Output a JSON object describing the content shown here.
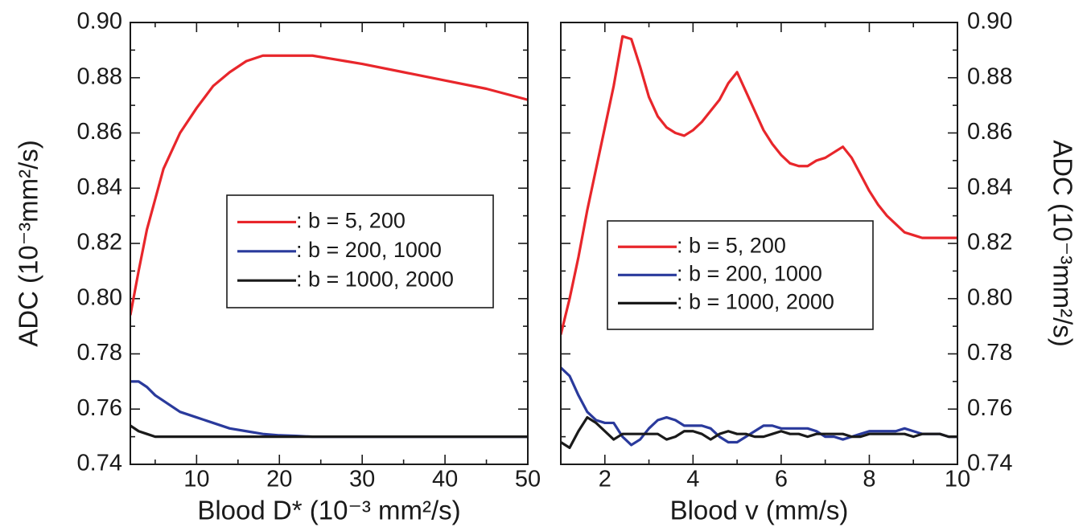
{
  "chart_data": [
    {
      "type": "line",
      "x_label": "Blood D* (10⁻³ mm²/s)",
      "y_label": "ADC (10⁻³mm²/s)",
      "y_axis_side": "left",
      "legend": "center",
      "xlim": [
        2,
        50
      ],
      "xticks": [
        10,
        20,
        30,
        40,
        50
      ],
      "xminorticks": [
        5,
        15,
        25,
        35,
        45
      ],
      "ylim": [
        0.74,
        0.9
      ],
      "yticks": [
        0.74,
        0.76,
        0.78,
        {
          "value": 0.8,
          "label": "0.80"
        },
        0.82,
        0.84,
        0.86,
        0.88,
        {
          "value": 0.9,
          "label": "0.90"
        }
      ],
      "yminorticks": [
        0.75,
        0.77,
        0.79,
        0.81,
        0.83,
        0.85,
        0.87,
        0.89
      ],
      "x": [
        2,
        3,
        4,
        5,
        6,
        8,
        10,
        12,
        14,
        16,
        18,
        20,
        22,
        24,
        26,
        28,
        30,
        35,
        40,
        45,
        50
      ],
      "series": [
        {
          "name": ": b = 5, 200",
          "color": "#e8262b",
          "values": [
            0.794,
            0.81,
            0.825,
            0.836,
            0.847,
            0.86,
            0.869,
            0.877,
            0.882,
            0.886,
            0.888,
            0.888,
            0.888,
            0.888,
            0.887,
            0.886,
            0.885,
            0.882,
            0.879,
            0.876,
            0.872
          ]
        },
        {
          "name": ": b = 200, 1000",
          "color": "#2a3a9c",
          "values": [
            0.77,
            0.77,
            0.768,
            0.765,
            0.763,
            0.759,
            0.757,
            0.755,
            0.753,
            0.752,
            0.751,
            0.7505,
            0.7503,
            0.75,
            0.75,
            0.75,
            0.75,
            0.75,
            0.75,
            0.75,
            0.75
          ]
        },
        {
          "name": ": b = 1000, 2000",
          "color": "#1a1a1a",
          "values": [
            0.754,
            0.752,
            0.751,
            0.75,
            0.75,
            0.75,
            0.75,
            0.75,
            0.75,
            0.75,
            0.75,
            0.75,
            0.75,
            0.75,
            0.75,
            0.75,
            0.75,
            0.75,
            0.75,
            0.75,
            0.75
          ]
        }
      ]
    },
    {
      "type": "line",
      "x_label": "Blood v (mm/s)",
      "y_label": "ADC (10⁻³mm²/s)",
      "y_axis_side": "right",
      "legend": "center-left",
      "xlim": [
        1,
        10
      ],
      "xticks": [
        2,
        4,
        6,
        8,
        10
      ],
      "xminorticks": [
        1,
        3,
        5,
        7,
        9
      ],
      "ylim": [
        0.74,
        0.9
      ],
      "yticks": [
        0.74,
        0.76,
        0.78,
        {
          "value": 0.8,
          "label": "0.80"
        },
        0.82,
        0.84,
        0.86,
        0.88,
        {
          "value": 0.9,
          "label": "0.90"
        }
      ],
      "yminorticks": [
        0.75,
        0.77,
        0.79,
        0.81,
        0.83,
        0.85,
        0.87,
        0.89
      ],
      "x": [
        1.0,
        1.2,
        1.4,
        1.6,
        1.8,
        2.0,
        2.2,
        2.4,
        2.6,
        2.8,
        3.0,
        3.2,
        3.4,
        3.6,
        3.8,
        4.0,
        4.2,
        4.4,
        4.6,
        4.8,
        5.0,
        5.2,
        5.4,
        5.6,
        5.8,
        6.0,
        6.2,
        6.4,
        6.6,
        6.8,
        7.0,
        7.2,
        7.4,
        7.6,
        7.8,
        8.0,
        8.2,
        8.4,
        8.6,
        8.8,
        9.0,
        9.2,
        9.4,
        9.6,
        9.8,
        10.0
      ],
      "series": [
        {
          "name": ": b = 5, 200",
          "color": "#e8262b",
          "values": [
            0.787,
            0.8,
            0.815,
            0.832,
            0.847,
            0.862,
            0.877,
            0.895,
            0.894,
            0.884,
            0.873,
            0.866,
            0.862,
            0.86,
            0.859,
            0.861,
            0.864,
            0.868,
            0.872,
            0.878,
            0.882,
            0.875,
            0.868,
            0.861,
            0.856,
            0.852,
            0.849,
            0.848,
            0.848,
            0.85,
            0.851,
            0.853,
            0.855,
            0.851,
            0.845,
            0.839,
            0.834,
            0.83,
            0.827,
            0.824,
            0.823,
            0.822,
            0.822,
            0.822,
            0.822,
            0.822
          ]
        },
        {
          "name": ": b = 200, 1000",
          "color": "#2a3a9c",
          "values": [
            0.775,
            0.772,
            0.765,
            0.759,
            0.756,
            0.755,
            0.755,
            0.75,
            0.747,
            0.749,
            0.753,
            0.756,
            0.757,
            0.756,
            0.754,
            0.754,
            0.754,
            0.753,
            0.75,
            0.748,
            0.748,
            0.75,
            0.752,
            0.754,
            0.754,
            0.753,
            0.753,
            0.753,
            0.753,
            0.752,
            0.75,
            0.75,
            0.749,
            0.75,
            0.751,
            0.752,
            0.752,
            0.752,
            0.752,
            0.753,
            0.752,
            0.751,
            0.751,
            0.751,
            0.75,
            0.75
          ]
        },
        {
          "name": ": b = 1000, 2000",
          "color": "#1a1a1a",
          "values": [
            0.748,
            0.746,
            0.752,
            0.757,
            0.755,
            0.752,
            0.749,
            0.751,
            0.751,
            0.751,
            0.751,
            0.751,
            0.749,
            0.75,
            0.752,
            0.752,
            0.751,
            0.749,
            0.751,
            0.752,
            0.751,
            0.751,
            0.75,
            0.75,
            0.751,
            0.752,
            0.751,
            0.751,
            0.75,
            0.751,
            0.751,
            0.751,
            0.751,
            0.75,
            0.75,
            0.751,
            0.751,
            0.751,
            0.751,
            0.751,
            0.75,
            0.751,
            0.751,
            0.751,
            0.75,
            0.75
          ]
        }
      ]
    }
  ]
}
